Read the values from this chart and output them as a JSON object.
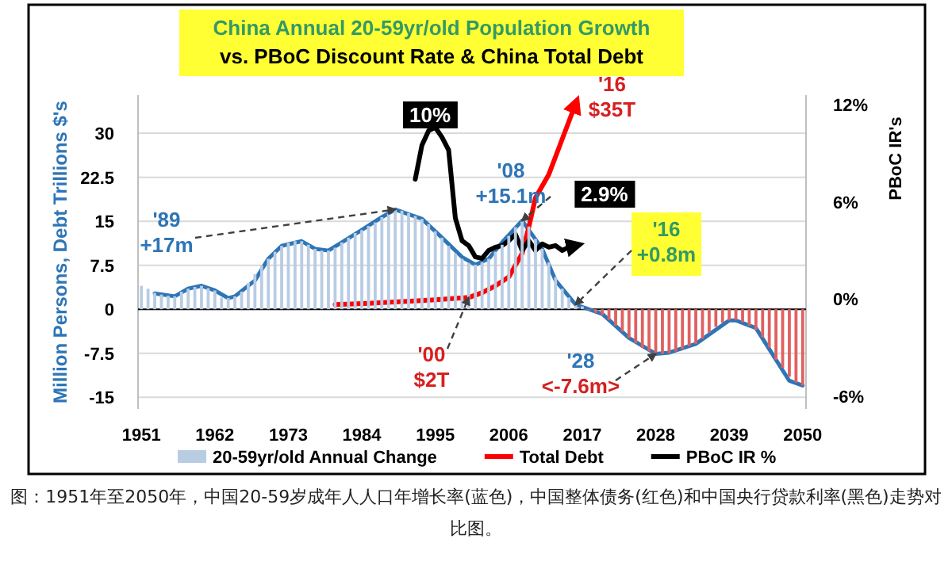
{
  "chart_data": {
    "type": "bar",
    "title": "China Annual 20-59yr/old Population Growth",
    "subtitle": "vs. PBoC Discount Rate & China Total Debt",
    "ylabel": "Million Persons, Debt Trillions $'s",
    "y2label": "PBoC IR's",
    "x": [
      1951,
      1952,
      1953,
      1954,
      1955,
      1956,
      1957,
      1958,
      1959,
      1960,
      1961,
      1962,
      1963,
      1964,
      1965,
      1966,
      1967,
      1968,
      1969,
      1970,
      1971,
      1972,
      1973,
      1974,
      1975,
      1976,
      1977,
      1978,
      1979,
      1980,
      1981,
      1982,
      1983,
      1984,
      1985,
      1986,
      1987,
      1988,
      1989,
      1990,
      1991,
      1992,
      1993,
      1994,
      1995,
      1996,
      1997,
      1998,
      1999,
      2000,
      2001,
      2002,
      2003,
      2004,
      2005,
      2006,
      2007,
      2008,
      2009,
      2010,
      2011,
      2012,
      2013,
      2014,
      2015,
      2016,
      2017,
      2018,
      2019,
      2020,
      2021,
      2022,
      2023,
      2024,
      2025,
      2026,
      2027,
      2028,
      2029,
      2030,
      2031,
      2032,
      2033,
      2034,
      2035,
      2036,
      2037,
      2038,
      2039,
      2040,
      2041,
      2042,
      2043,
      2044,
      2045,
      2046,
      2047,
      2048,
      2049,
      2050
    ],
    "series": [
      {
        "name": "20-59yr/old Annual Change",
        "color": "#b8cce4",
        "values": [
          4.0,
          3.5,
          2.8,
          2.5,
          2.3,
          2.2,
          3.0,
          3.5,
          3.8,
          4.0,
          3.6,
          3.2,
          2.0,
          1.9,
          2.2,
          3.0,
          4.5,
          6.0,
          7.5,
          8.6,
          9.8,
          10.8,
          11.3,
          11.6,
          11.6,
          11.0,
          10.3,
          10.0,
          10.0,
          10.5,
          11.4,
          12.2,
          13.0,
          13.5,
          14.2,
          14.8,
          15.7,
          16.3,
          17.0,
          16.8,
          16.4,
          15.9,
          15.4,
          14.5,
          13.3,
          12.2,
          10.8,
          9.5,
          8.6,
          7.9,
          7.6,
          8.0,
          8.6,
          9.8,
          11.0,
          12.5,
          14.0,
          15.1,
          14.1,
          12.0,
          10.3,
          8.0,
          5.5,
          3.5,
          2.0,
          0.8,
          0.5,
          -0.2,
          -0.6,
          -1.0,
          -1.8,
          -2.8,
          -3.8,
          -4.9,
          -5.8,
          -6.6,
          -7.2,
          -7.6,
          -7.6,
          -7.5,
          -7.2,
          -6.8,
          -6.3,
          -5.9,
          -5.0,
          -4.0,
          -3.0,
          -2.3,
          -1.9,
          -1.8,
          -2.2,
          -2.8,
          -3.5,
          -4.8,
          -6.5,
          -8.6,
          -10.0,
          -11.5,
          -12.5,
          -13.0
        ],
        "colors": [
          "#b8cce4",
          "#b8cce4",
          "#b8cce4",
          "#b8cce4",
          "#b8cce4",
          "#b8cce4",
          "#b8cce4",
          "#b8cce4",
          "#b8cce4",
          "#b8cce4",
          "#b8cce4",
          "#b8cce4",
          "#b8cce4",
          "#b8cce4",
          "#b8cce4",
          "#b8cce4",
          "#b8cce4",
          "#b8cce4",
          "#b8cce4",
          "#b8cce4",
          "#b8cce4",
          "#b8cce4",
          "#b8cce4",
          "#b8cce4",
          "#b8cce4",
          "#b8cce4",
          "#b8cce4",
          "#b8cce4",
          "#b8cce4",
          "#b8cce4",
          "#b8cce4",
          "#b8cce4",
          "#b8cce4",
          "#b8cce4",
          "#b8cce4",
          "#b8cce4",
          "#b8cce4",
          "#b8cce4",
          "#b8cce4",
          "#b8cce4",
          "#b8cce4",
          "#b8cce4",
          "#b8cce4",
          "#b8cce4",
          "#b8cce4",
          "#b8cce4",
          "#b8cce4",
          "#b8cce4",
          "#b8cce4",
          "#b8cce4",
          "#b8cce4",
          "#b8cce4",
          "#b8cce4",
          "#b8cce4",
          "#b8cce4",
          "#b8cce4",
          "#b8cce4",
          "#b8cce4",
          "#b8cce4",
          "#b8cce4",
          "#b8cce4",
          "#b8cce4",
          "#b8cce4",
          "#b8cce4",
          "#b8cce4",
          "#b8cce4",
          "#b8cce4",
          "#e06060",
          "#e06060",
          "#e06060",
          "#e06060",
          "#e06060",
          "#e06060",
          "#e06060",
          "#e06060",
          "#e06060",
          "#e06060",
          "#e06060",
          "#e06060",
          "#e06060",
          "#e06060",
          "#e06060",
          "#e06060",
          "#e06060",
          "#e06060",
          "#e06060",
          "#e06060",
          "#e06060",
          "#e06060",
          "#e06060",
          "#e06060",
          "#e06060",
          "#e06060",
          "#e06060",
          "#e06060",
          "#e06060",
          "#e06060",
          "#e06060",
          "#e06060",
          "#e06060"
        ]
      },
      {
        "type": "line",
        "color": "#2e75b6",
        "x": [
          1953,
          1956,
          1958,
          1960,
          1962,
          1964,
          1965,
          1968,
          1970,
          1972,
          1975,
          1977,
          1979,
          1981,
          1984,
          1987,
          1989,
          1993,
          1996,
          1999,
          2001,
          2003,
          2005,
          2008,
          2011,
          2013,
          2016,
          2020,
          2024,
          2028,
          2030,
          2034,
          2039,
          2040,
          2043,
          2046,
          2048,
          2050
        ],
        "values": [
          2.7,
          2.2,
          3.5,
          4.0,
          3.2,
          1.9,
          2.2,
          4.9,
          8.6,
          10.8,
          11.6,
          10.3,
          10.0,
          11.4,
          13.5,
          15.7,
          17.0,
          15.4,
          12.2,
          8.9,
          7.6,
          8.6,
          11.4,
          15.1,
          10.3,
          4.9,
          0.8,
          -0.8,
          -4.9,
          -7.6,
          -7.4,
          -5.9,
          -1.9,
          -1.9,
          -3.2,
          -8.6,
          -12.2,
          -13.0
        ]
      },
      {
        "name": "Total Debt",
        "type": "line",
        "color": "#ff0000",
        "x": [
          1980,
          1985,
          1990,
          1995,
          2000,
          2002,
          2004,
          2006,
          2008,
          2009,
          2010,
          2012,
          2013,
          2014,
          2015,
          2016
        ],
        "values": [
          0.8,
          1.0,
          1.3,
          1.6,
          2.0,
          2.8,
          4.0,
          5.5,
          9.5,
          14.0,
          19.0,
          23.0,
          26.0,
          29.0,
          32.0,
          35.0
        ]
      },
      {
        "name": "PBoC IR %",
        "type": "line",
        "axis": "y2",
        "color": "#000000",
        "x": [
          1992,
          1993,
          1994,
          1995,
          1996,
          1997,
          1998,
          1999,
          2000,
          2001,
          2002,
          2003,
          2004,
          2005,
          2006,
          2007,
          2008,
          2009,
          2010,
          2011,
          2012,
          2013,
          2014,
          2015,
          2016
        ],
        "values": [
          7.4,
          9.5,
          10.4,
          10.6,
          10.0,
          9.2,
          5.0,
          3.6,
          3.3,
          2.6,
          2.5,
          3.0,
          3.2,
          3.3,
          3.6,
          4.0,
          3.0,
          3.6,
          3.0,
          3.4,
          3.2,
          3.3,
          3.0,
          3.2,
          3.3
        ]
      }
    ],
    "xlim": [
      1950.5,
      2050.5
    ],
    "xticks": [
      1951,
      1962,
      1973,
      1984,
      1995,
      2006,
      2017,
      2028,
      2039,
      2050
    ],
    "ylim": [
      -17,
      36.5
    ],
    "yticks": [
      -15,
      -7.5,
      0,
      7.5,
      15,
      22.5,
      30
    ],
    "y2lim": [
      -6.8,
      12.6
    ],
    "y2ticks": [
      {
        "value": -6,
        "label": "-6%"
      },
      {
        "value": 0,
        "label": "0%"
      },
      {
        "value": 6,
        "label": "6%"
      },
      {
        "value": 12,
        "label": "12%"
      }
    ],
    "grid": "y",
    "legend": "bottom",
    "annotations": [
      {
        "text": "'89\n+17m",
        "x": 1989,
        "y": 17
      },
      {
        "text": "'08\n+15.1m",
        "x": 2008,
        "y": 15.1
      },
      {
        "text": "'16\n$35T",
        "x": 2016,
        "y": 35
      },
      {
        "text": "'00\n$2T",
        "x": 2000,
        "y": 2
      },
      {
        "text": "'28\n<-7.6m>",
        "x": 2028,
        "y": -7.6
      },
      {
        "text": "'16\n+0.8m",
        "x": 2016,
        "y": 0.8
      },
      "10%",
      "2.9%",
      "图：1951年至2050年，中国20-59岁成年人人口年增长率(蓝色)，中国整体债务(红色)和中国央行贷款利率(黑色)走势对比图。"
    ]
  }
}
